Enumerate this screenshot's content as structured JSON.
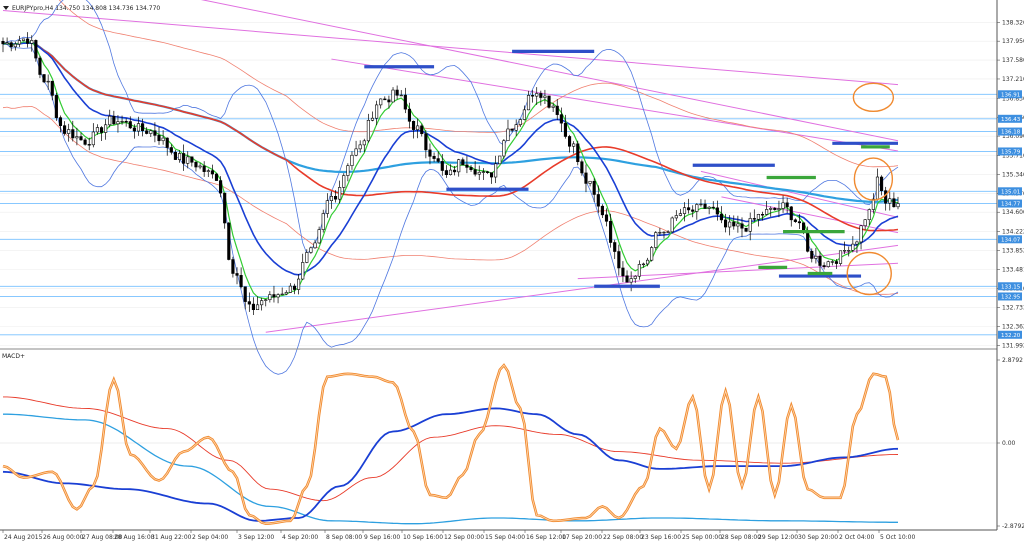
{
  "header": {
    "main_title": "EURJPYpro,H4 134.750 134.808 134.736 134.770",
    "macd_label": "MACD+"
  },
  "colors": {
    "bull_candle": "#ffffff",
    "bear_candle": "#000000",
    "ema_green": "#33cc33",
    "ema_blue": "#1a3fd4",
    "sma_red": "#e83b2a",
    "sma_cyan": "#2ea0e0",
    "bollinger": "#5078e0",
    "envelope": "#f08070",
    "trendline": "#e070e0",
    "hline": "#77c0ff",
    "support_blue": "#2e4fc8",
    "support_green": "#3aa63a",
    "circle": "#f08a30",
    "stoch": "#f08a30",
    "macd_main": "#1a3fd4",
    "macd_signal": "#e83b2a"
  },
  "chart_data": [
    {
      "type": "candlestick",
      "series_name": "EURJPYpro,H4",
      "ylim": [
        131.98,
        138.6
      ],
      "y_ticks": [
        "138.320",
        "137.950",
        "137.580",
        "137.210",
        "136.830",
        "136.460",
        "136.090",
        "135.710",
        "135.340",
        "134.970",
        "134.600",
        "134.222",
        "133.852",
        "133.481",
        "133.110",
        "132.733",
        "132.362",
        "131.992"
      ],
      "x_ticks": [
        "24 Aug 2015",
        "26 Aug 00:00",
        "27 Aug 08:00",
        "28 Aug 16:00",
        "31 Aug 22:00",
        "2 Sep 04:00",
        "3 Sep 12:00",
        "4 Sep 20:00",
        "8 Sep 08:00",
        "9 Sep 16:00",
        "10 Sep 16:00",
        "12 Sep 00:00",
        "15 Sep 04:00",
        "16 Sep 12:00",
        "17 Sep 20:00",
        "22 Sep 08:00",
        "23 Sep 16:00",
        "25 Sep 00:00",
        "28 Sep 08:00",
        "29 Sep 12:00",
        "30 Sep 20:00",
        "2 Oct 04:00",
        "5 Oct 10:00"
      ],
      "price_tags": [
        "136.91",
        "136.43",
        "136.18",
        "135.79",
        "135.01",
        "134.77",
        "134.07",
        "133.15",
        "132.95",
        "132.20"
      ],
      "anchors": [
        [
          0,
          137.9
        ],
        [
          6,
          138.0
        ],
        [
          10,
          137.2
        ],
        [
          15,
          136.2
        ],
        [
          20,
          136.0
        ],
        [
          27,
          136.4
        ],
        [
          35,
          136.2
        ],
        [
          45,
          135.6
        ],
        [
          52,
          135.3
        ],
        [
          56,
          133.5
        ],
        [
          60,
          132.7
        ],
        [
          64,
          132.9
        ],
        [
          70,
          133.1
        ],
        [
          75,
          133.8
        ],
        [
          80,
          134.9
        ],
        [
          86,
          135.8
        ],
        [
          92,
          136.8
        ],
        [
          96,
          136.9
        ],
        [
          100,
          136.3
        ],
        [
          104,
          135.8
        ],
        [
          108,
          135.3
        ],
        [
          112,
          135.6
        ],
        [
          118,
          135.3
        ],
        [
          124,
          136.3
        ],
        [
          130,
          137.0
        ],
        [
          134,
          136.7
        ],
        [
          138,
          136.0
        ],
        [
          142,
          135.2
        ],
        [
          146,
          134.6
        ],
        [
          150,
          133.6
        ],
        [
          152,
          133.3
        ],
        [
          156,
          133.6
        ],
        [
          160,
          134.2
        ],
        [
          166,
          134.6
        ],
        [
          172,
          134.7
        ],
        [
          176,
          134.3
        ],
        [
          180,
          134.3
        ],
        [
          186,
          134.6
        ],
        [
          190,
          134.7
        ],
        [
          194,
          134.4
        ],
        [
          196,
          133.8
        ],
        [
          200,
          133.6
        ],
        [
          203,
          133.7
        ],
        [
          207,
          134.0
        ],
        [
          211,
          134.6
        ],
        [
          213,
          135.2
        ],
        [
          215,
          134.8
        ],
        [
          218,
          134.77
        ]
      ]
    },
    {
      "type": "line",
      "series_name": "MACD+",
      "ylim": [
        -2.879,
        2.879
      ],
      "y_ticks": [
        "2.8792",
        "0.00",
        "-2.8792"
      ],
      "stoch_anchors": [
        [
          0,
          -0.8
        ],
        [
          5,
          -1.2
        ],
        [
          12,
          -1.0
        ],
        [
          18,
          -2.3
        ],
        [
          22,
          -1.5
        ],
        [
          27,
          2.2
        ],
        [
          31,
          -0.4
        ],
        [
          38,
          -1.3
        ],
        [
          44,
          -0.3
        ],
        [
          50,
          0.2
        ],
        [
          56,
          -1.0
        ],
        [
          60,
          -2.5
        ],
        [
          64,
          -2.8
        ],
        [
          70,
          -2.7
        ],
        [
          74,
          -1.5
        ],
        [
          79,
          2.3
        ],
        [
          84,
          2.4
        ],
        [
          90,
          2.3
        ],
        [
          95,
          2.1
        ],
        [
          100,
          0.4
        ],
        [
          104,
          -1.8
        ],
        [
          108,
          -1.9
        ],
        [
          112,
          -1.1
        ],
        [
          116,
          0.3
        ],
        [
          122,
          2.7
        ],
        [
          126,
          1.2
        ],
        [
          130,
          -2.5
        ],
        [
          134,
          -2.7
        ],
        [
          142,
          -2.6
        ],
        [
          146,
          -2.2
        ],
        [
          150,
          -2.6
        ],
        [
          156,
          -1.5
        ],
        [
          160,
          0.5
        ],
        [
          164,
          -0.2
        ],
        [
          168,
          1.6
        ],
        [
          172,
          -1.6
        ],
        [
          176,
          1.8
        ],
        [
          180,
          -1.5
        ],
        [
          184,
          1.6
        ],
        [
          188,
          -1.8
        ],
        [
          192,
          1.3
        ],
        [
          196,
          -1.6
        ],
        [
          200,
          -1.9
        ],
        [
          204,
          -1.9
        ],
        [
          208,
          1.0
        ],
        [
          212,
          2.4
        ],
        [
          215,
          2.3
        ],
        [
          218,
          0.1
        ]
      ],
      "macd_anchors": [
        [
          0,
          -1.0
        ],
        [
          15,
          -1.4
        ],
        [
          30,
          -1.6
        ],
        [
          50,
          -2.1
        ],
        [
          62,
          -2.7
        ],
        [
          72,
          -2.6
        ],
        [
          82,
          -1.5
        ],
        [
          95,
          0.4
        ],
        [
          108,
          1.0
        ],
        [
          120,
          1.2
        ],
        [
          130,
          1.0
        ],
        [
          140,
          0.3
        ],
        [
          150,
          -0.6
        ],
        [
          160,
          -0.9
        ],
        [
          175,
          -0.8
        ],
        [
          190,
          -0.8
        ],
        [
          205,
          -0.5
        ],
        [
          218,
          -0.2
        ]
      ],
      "signal_anchors": [
        [
          0,
          1.6
        ],
        [
          20,
          1.2
        ],
        [
          40,
          0.5
        ],
        [
          55,
          -0.6
        ],
        [
          65,
          -1.6
        ],
        [
          78,
          -2.0
        ],
        [
          90,
          -1.2
        ],
        [
          105,
          0.2
        ],
        [
          120,
          0.6
        ],
        [
          135,
          0.3
        ],
        [
          150,
          -0.3
        ],
        [
          170,
          -0.6
        ],
        [
          190,
          -0.7
        ],
        [
          218,
          -0.4
        ]
      ],
      "slow_anchors": [
        [
          0,
          1.0
        ],
        [
          20,
          0.8
        ],
        [
          45,
          -0.8
        ],
        [
          65,
          -2.2
        ],
        [
          80,
          -2.7
        ],
        [
          100,
          -2.8
        ],
        [
          120,
          -2.6
        ],
        [
          140,
          -2.7
        ],
        [
          160,
          -2.6
        ],
        [
          190,
          -2.7
        ],
        [
          218,
          -2.75
        ]
      ]
    }
  ]
}
